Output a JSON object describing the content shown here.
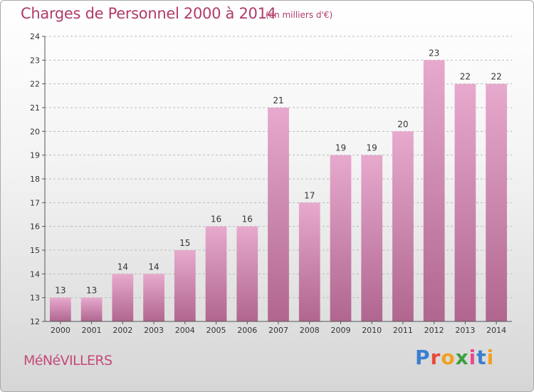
{
  "header": {
    "title": "Charges de Personnel 2000 à 2014",
    "subtitle": "(en milliers d'€)"
  },
  "footer": {
    "commune": "MéNéVILLERS",
    "logo": {
      "letters": [
        "P",
        "r",
        "o",
        "x",
        "i",
        "t",
        "i"
      ],
      "colors": [
        "#3a7fd0",
        "#e84a3a",
        "#f0a020",
        "#3aa040",
        "#e84a8a",
        "#3a7fd0",
        "#f0a020"
      ]
    }
  },
  "colors": {
    "bar_light": "#e7a9cd",
    "bar_dark": "#b0668f",
    "axis": "#555555",
    "grid": "#bbbbbb",
    "text": "#333333"
  },
  "chart_data": {
    "type": "bar",
    "categories": [
      "2000",
      "2001",
      "2002",
      "2003",
      "2004",
      "2005",
      "2006",
      "2007",
      "2008",
      "2009",
      "2010",
      "2011",
      "2012",
      "2013",
      "2014"
    ],
    "values": [
      13,
      13,
      14,
      14,
      15,
      16,
      16,
      21,
      17,
      19,
      19,
      20,
      23,
      22,
      22
    ],
    "data_labels": [
      "13",
      "13",
      "14",
      "14",
      "15",
      "16",
      "16",
      "21",
      "17",
      "19",
      "19",
      "20",
      "23",
      "22",
      "22"
    ],
    "title": "Charges de Personnel 2000 à 2014",
    "subtitle": "(en milliers d'€)",
    "xlabel": "",
    "ylabel": "",
    "ylim": [
      12,
      24
    ],
    "yticks": [
      12,
      13,
      14,
      15,
      16,
      17,
      18,
      19,
      20,
      21,
      22,
      23,
      24
    ],
    "grid": true
  }
}
